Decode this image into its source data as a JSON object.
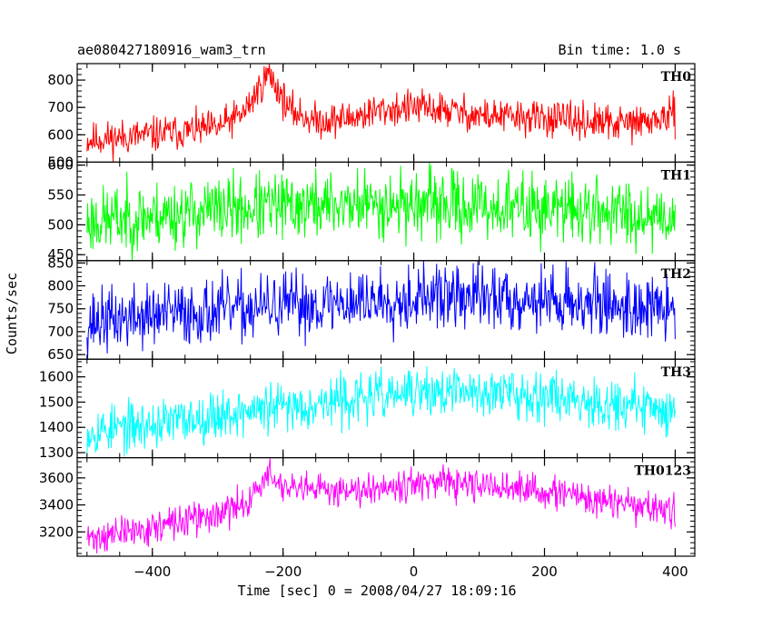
{
  "chart_data": {
    "type": "line",
    "title": "ae080427180916_wam3_trn",
    "subtitle": "Bin time: 1.0 s",
    "xlabel": "Time [sec] 0 = 2008/04/27 18:09:16",
    "ylabel": "Counts/sec",
    "xlim": [
      -515,
      430
    ],
    "x_ticks": [
      -400,
      -200,
      0,
      200,
      400
    ],
    "x_tick_labels": [
      "−400",
      "−200",
      "0",
      "200",
      "400"
    ],
    "x_range": [
      -500,
      400
    ],
    "grid": false,
    "panels": [
      {
        "name": "TH0",
        "color": "#ff0000",
        "ylim": [
          500,
          860
        ],
        "y_ticks": [
          500,
          600,
          700,
          800
        ],
        "y_tick_labels": [
          "500",
          "600",
          "700",
          "800"
        ],
        "trend": [
          [
            -500,
            580
          ],
          [
            -400,
            600
          ],
          [
            -300,
            625
          ],
          [
            -260,
            680
          ],
          [
            -222,
            825
          ],
          [
            -190,
            690
          ],
          [
            -150,
            650
          ],
          [
            -100,
            660
          ],
          [
            -50,
            690
          ],
          [
            0,
            700
          ],
          [
            50,
            690
          ],
          [
            100,
            670
          ],
          [
            200,
            660
          ],
          [
            300,
            640
          ],
          [
            350,
            645
          ],
          [
            400,
            670
          ]
        ],
        "noise": 32,
        "seed": 11
      },
      {
        "name": "TH1",
        "color": "#00ff00",
        "ylim": [
          440,
          605
        ],
        "y_ticks": [
          450,
          500,
          550,
          600
        ],
        "y_tick_labels": [
          "450",
          "500",
          "550",
          "600"
        ],
        "trend": [
          [
            -500,
            505
          ],
          [
            -400,
            515
          ],
          [
            -300,
            525
          ],
          [
            -200,
            530
          ],
          [
            -100,
            535
          ],
          [
            0,
            535
          ],
          [
            100,
            530
          ],
          [
            200,
            528
          ],
          [
            300,
            522
          ],
          [
            400,
            515
          ]
        ],
        "noise": 28,
        "seed": 23
      },
      {
        "name": "TH2",
        "color": "#0000ff",
        "ylim": [
          640,
          855
        ],
        "y_ticks": [
          650,
          700,
          750,
          800,
          850
        ],
        "y_tick_labels": [
          "650",
          "700",
          "750",
          "800",
          "850"
        ],
        "trend": [
          [
            -500,
            720
          ],
          [
            -400,
            735
          ],
          [
            -300,
            745
          ],
          [
            -200,
            755
          ],
          [
            -100,
            765
          ],
          [
            0,
            775
          ],
          [
            100,
            775
          ],
          [
            200,
            770
          ],
          [
            300,
            760
          ],
          [
            400,
            745
          ]
        ],
        "noise": 35,
        "seed": 37
      },
      {
        "name": "TH3",
        "color": "#00ffff",
        "ylim": [
          1280,
          1670
        ],
        "y_ticks": [
          1300,
          1400,
          1500,
          1600
        ],
        "y_tick_labels": [
          "1300",
          "1400",
          "1500",
          "1600"
        ],
        "trend": [
          [
            -500,
            1385
          ],
          [
            -400,
            1410
          ],
          [
            -300,
            1450
          ],
          [
            -200,
            1480
          ],
          [
            -100,
            1510
          ],
          [
            0,
            1535
          ],
          [
            100,
            1540
          ],
          [
            200,
            1530
          ],
          [
            300,
            1495
          ],
          [
            400,
            1465
          ]
        ],
        "noise": 48,
        "seed": 53
      },
      {
        "name": "TH0123",
        "color": "#ff00ff",
        "ylim": [
          3020,
          3750
        ],
        "y_ticks": [
          3200,
          3400,
          3600
        ],
        "y_tick_labels": [
          "3200",
          "3400",
          "3600"
        ],
        "trend": [
          [
            -500,
            3150
          ],
          [
            -400,
            3230
          ],
          [
            -300,
            3330
          ],
          [
            -260,
            3400
          ],
          [
            -222,
            3620
          ],
          [
            -190,
            3500
          ],
          [
            -100,
            3520
          ],
          [
            0,
            3560
          ],
          [
            100,
            3540
          ],
          [
            200,
            3500
          ],
          [
            300,
            3420
          ],
          [
            400,
            3350
          ]
        ],
        "noise": 60,
        "seed": 71
      }
    ]
  }
}
